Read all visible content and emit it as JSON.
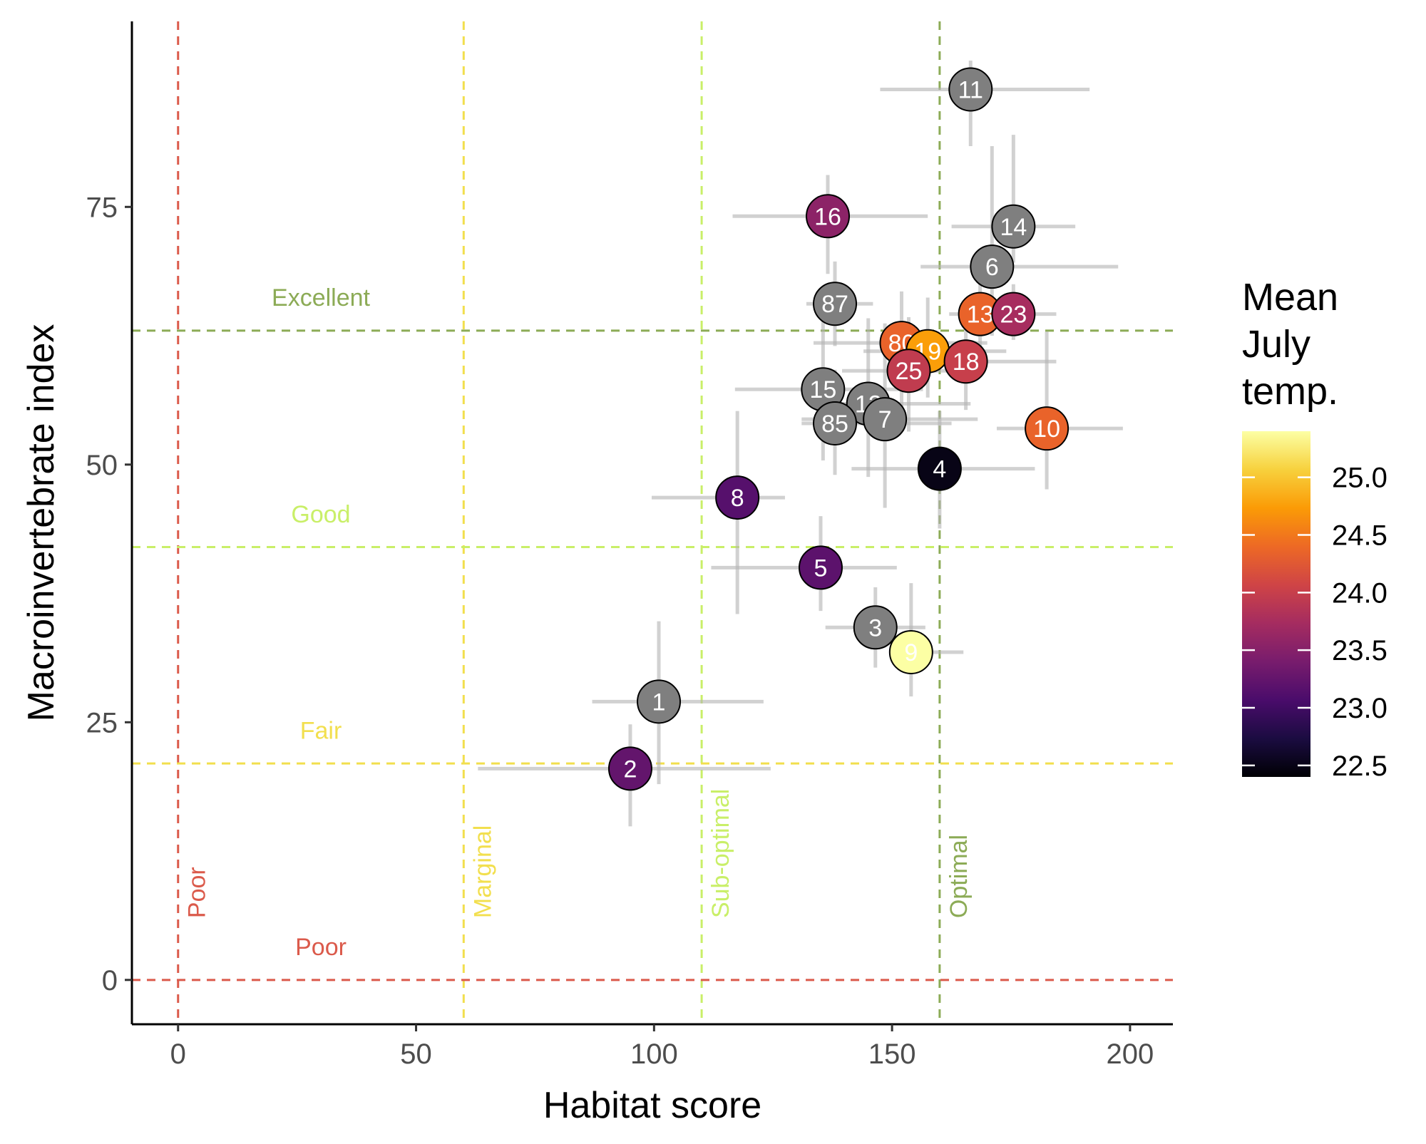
{
  "chart_data": {
    "type": "scatter",
    "title": "",
    "xlabel": "Habitat score",
    "ylabel": "Macroinvertebrate index",
    "xlim": [
      -9.7,
      209
    ],
    "ylim": [
      -4.3,
      93
    ],
    "x_ticks": [
      0,
      50,
      100,
      150,
      200
    ],
    "y_ticks": [
      0,
      25,
      50,
      75
    ],
    "grid": false,
    "legend": {
      "title": "Mean July temp.",
      "title_lines": [
        "Mean",
        "July",
        "temp."
      ],
      "placement": "right",
      "ticks": [
        22.5,
        23.0,
        23.5,
        24.0,
        24.5,
        25.0
      ],
      "tick_labels": [
        "22.5",
        "23.0",
        "23.5",
        "24.0",
        "24.5",
        "25.0"
      ],
      "range": [
        22.4,
        25.4
      ],
      "gradient": [
        "#000004",
        "#1b0c41",
        "#4a0c6b",
        "#781c6d",
        "#a52c60",
        "#cf4446",
        "#ed6925",
        "#fb9b06",
        "#f7d13d",
        "#fcffa4"
      ],
      "na_color": "#7f7f7f"
    },
    "vertical_thresholds": [
      {
        "value": 0,
        "label": "Poor",
        "color": "#db5a4b"
      },
      {
        "value": 60,
        "label": "Marginal",
        "color": "#f2df4e"
      },
      {
        "value": 110,
        "label": "Sub-optimal",
        "color": "#c9ef68"
      },
      {
        "value": 160,
        "label": "Optimal",
        "color": "#8cab56"
      }
    ],
    "horizontal_thresholds": [
      {
        "value": 0,
        "label": "Poor",
        "color": "#db5a4b"
      },
      {
        "value": 21,
        "label": "Fair",
        "color": "#f2df4e"
      },
      {
        "value": 42,
        "label": "Good",
        "color": "#c9ef68"
      },
      {
        "value": 63,
        "label": "Excellent",
        "color": "#8cab56"
      }
    ],
    "points": [
      {
        "label": "11",
        "x": 166.5,
        "y": 86.4,
        "x_err": [
          147.5,
          191.5
        ],
        "y_err": [
          80.9,
          89.2
        ],
        "temp": null
      },
      {
        "label": "16",
        "x": 136.5,
        "y": 74.1,
        "x_err": [
          116.5,
          157.5
        ],
        "y_err": [
          68.5,
          78.1
        ],
        "temp": 23.55
      },
      {
        "label": "14",
        "x": 175.5,
        "y": 73.1,
        "x_err": [
          162.5,
          188.5
        ],
        "y_err": [
          69.6,
          82.0
        ],
        "temp": null
      },
      {
        "label": "6",
        "x": 171.0,
        "y": 69.2,
        "x_err": [
          156.0,
          197.5
        ],
        "y_err": [
          62.5,
          80.9
        ],
        "temp": null
      },
      {
        "label": "87",
        "x": 138.0,
        "y": 65.6,
        "x_err": [
          132.0,
          146.0
        ],
        "y_err": [
          61.5,
          69.7
        ],
        "temp": null
      },
      {
        "label": "13",
        "x": 168.5,
        "y": 64.6,
        "x_err": [
          162.0,
          175.5
        ],
        "y_err": [
          60.3,
          68.3
        ],
        "temp": 24.35
      },
      {
        "label": "23",
        "x": 175.5,
        "y": 64.6,
        "x_err": [
          165.5,
          184.5
        ],
        "y_err": [
          62.1,
          67.5
        ],
        "temp": 23.75
      },
      {
        "label": "80",
        "x": 152.0,
        "y": 61.8,
        "x_err": [
          133.5,
          170.0
        ],
        "y_err": [
          55.4,
          66.8
        ],
        "temp": 24.35
      },
      {
        "label": "19",
        "x": 157.5,
        "y": 61.0,
        "x_err": [
          144.0,
          174.0
        ],
        "y_err": [
          56.5,
          66.2
        ],
        "temp": 24.75
      },
      {
        "label": "25",
        "x": 153.5,
        "y": 59.1,
        "x_err": [
          139.5,
          167.0
        ],
        "y_err": [
          53.2,
          64.3
        ],
        "temp": 23.95
      },
      {
        "label": "18",
        "x": 165.5,
        "y": 60.0,
        "x_err": [
          158.5,
          184.5
        ],
        "y_err": [
          55.3,
          63.2
        ],
        "temp": 24.0
      },
      {
        "label": "15",
        "x": 135.5,
        "y": 57.3,
        "x_err": [
          117.0,
          156.5
        ],
        "y_err": [
          50.4,
          64.2
        ],
        "temp": null
      },
      {
        "label": "12",
        "x": 145.0,
        "y": 55.9,
        "x_err": [
          134.0,
          166.5
        ],
        "y_err": [
          48.8,
          64.2
        ],
        "temp": null
      },
      {
        "label": "85",
        "x": 138.0,
        "y": 54.0,
        "x_err": [
          131.0,
          162.5
        ],
        "y_err": [
          49.0,
          59.2
        ],
        "temp": null
      },
      {
        "label": "7",
        "x": 148.5,
        "y": 54.4,
        "x_err": [
          131.0,
          168.0
        ],
        "y_err": [
          45.8,
          63.7
        ],
        "temp": null
      },
      {
        "label": "10",
        "x": 182.5,
        "y": 53.5,
        "x_err": [
          172.0,
          198.5
        ],
        "y_err": [
          47.6,
          62.9
        ],
        "temp": 24.35
      },
      {
        "label": "4",
        "x": 160.0,
        "y": 49.6,
        "x_err": [
          141.5,
          180.0
        ],
        "y_err": [
          43.8,
          55.2
        ],
        "temp": 22.5
      },
      {
        "label": "8",
        "x": 117.5,
        "y": 46.8,
        "x_err": [
          99.5,
          127.5
        ],
        "y_err": [
          35.5,
          55.2
        ],
        "temp": 23.15
      },
      {
        "label": "5",
        "x": 135.0,
        "y": 40.0,
        "x_err": [
          112.0,
          151.0
        ],
        "y_err": [
          35.8,
          45.0
        ],
        "temp": 23.2
      },
      {
        "label": "3",
        "x": 146.5,
        "y": 34.2,
        "x_err": [
          136.0,
          157.0
        ],
        "y_err": [
          30.3,
          38.1
        ],
        "temp": null
      },
      {
        "label": "9",
        "x": 154.0,
        "y": 31.8,
        "x_err": [
          149.5,
          165.0
        ],
        "y_err": [
          27.5,
          38.5
        ],
        "temp": 25.4
      },
      {
        "label": "1",
        "x": 101.0,
        "y": 27.0,
        "x_err": [
          87.0,
          123.0
        ],
        "y_err": [
          19.0,
          34.8
        ],
        "temp": null
      },
      {
        "label": "2",
        "x": 95.0,
        "y": 20.5,
        "x_err": [
          63.0,
          124.5
        ],
        "y_err": [
          14.9,
          24.8
        ],
        "temp": 23.25
      }
    ]
  }
}
